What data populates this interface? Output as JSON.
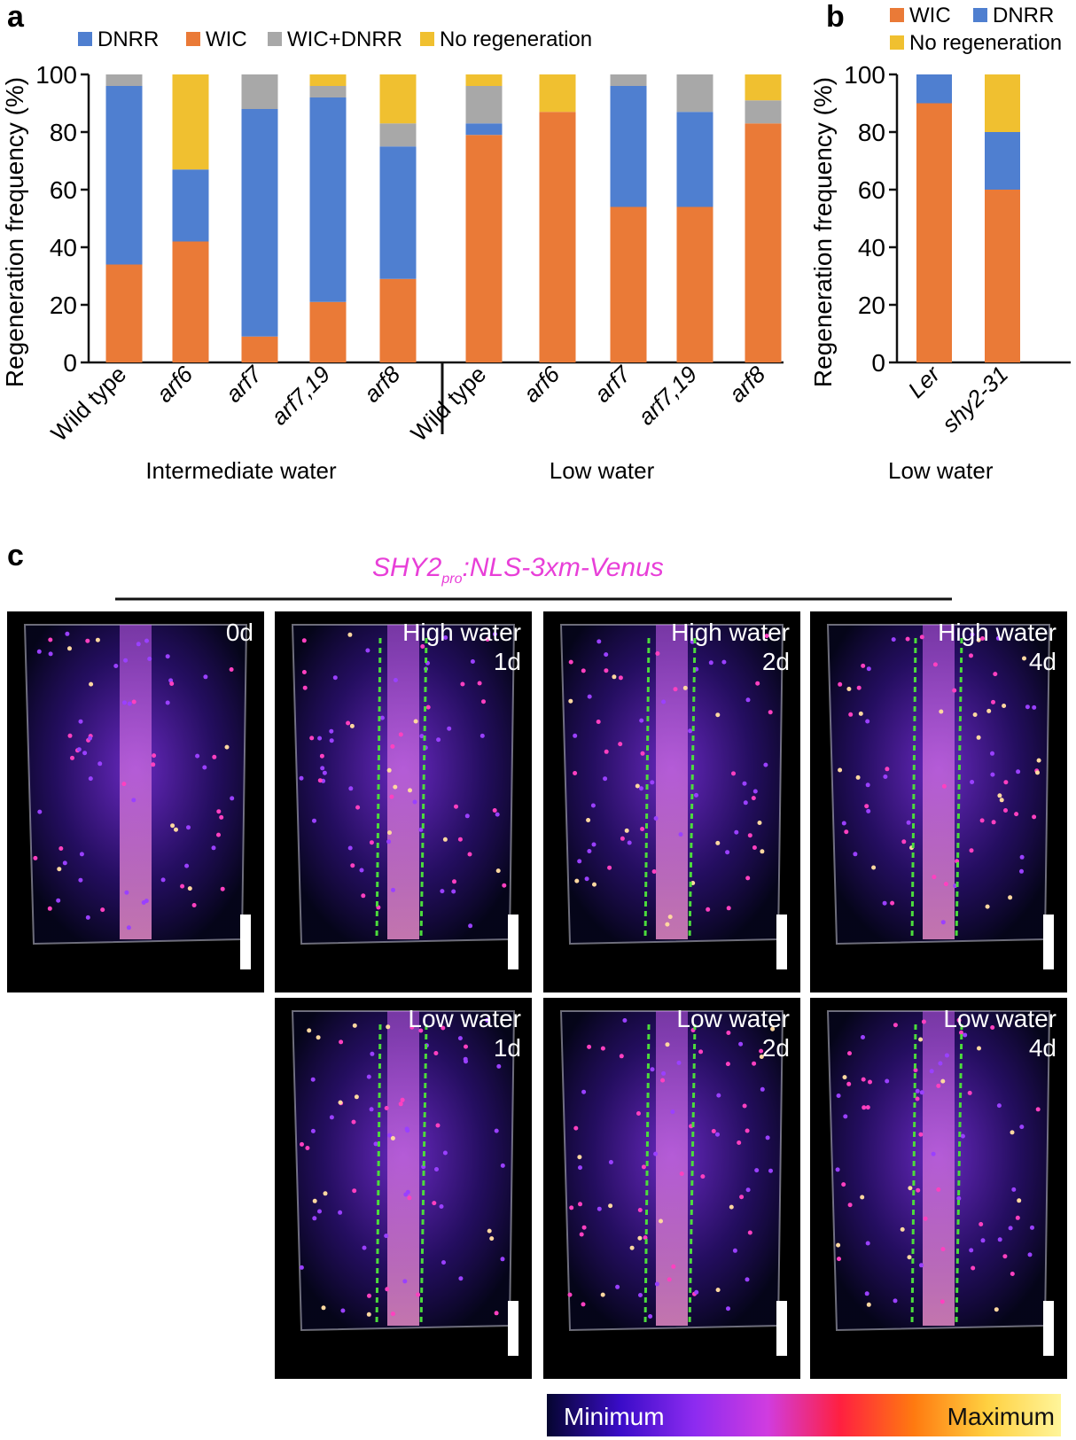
{
  "panels": {
    "a": {
      "letter": "a"
    },
    "b": {
      "letter": "b"
    },
    "c": {
      "letter": "c"
    }
  },
  "colors": {
    "DNRR": "#4f7fd0",
    "WIC": "#ea7a37",
    "WIC+DNRR": "#a8a8a8",
    "No regeneration": "#f0c030"
  },
  "chart_data": [
    {
      "type": "bar",
      "stacked": true,
      "ylabel": "Regeneration frequency (%)",
      "ylim": [
        0,
        100
      ],
      "yticks": [
        0,
        20,
        40,
        60,
        80,
        100
      ],
      "legend": [
        "DNRR",
        "WIC",
        "WIC+DNRR",
        "No regeneration"
      ],
      "legend_position": "top",
      "groups": [
        {
          "label": "Intermediate water",
          "categories": [
            "Wild type",
            "arf6",
            "arf7",
            "arf7,19",
            "arf8"
          ]
        },
        {
          "label": "Low water",
          "categories": [
            "Wild type",
            "arf6",
            "arf7",
            "arf7,19",
            "arf8"
          ]
        }
      ],
      "categories": [
        "Wild type",
        "arf6",
        "arf7",
        "arf7,19",
        "arf8",
        "Wild type",
        "arf6",
        "arf7",
        "arf7,19",
        "arf8"
      ],
      "italic_categories": [
        false,
        true,
        true,
        true,
        true,
        false,
        true,
        true,
        true,
        true
      ],
      "series": [
        {
          "name": "WIC",
          "values": [
            34,
            42,
            9,
            21,
            29,
            79,
            87,
            54,
            54,
            83
          ]
        },
        {
          "name": "DNRR",
          "values": [
            62,
            25,
            79,
            71,
            46,
            4,
            0,
            42,
            33,
            0
          ]
        },
        {
          "name": "WIC+DNRR",
          "values": [
            4,
            0,
            12,
            4,
            8,
            13,
            0,
            4,
            13,
            8
          ]
        },
        {
          "name": "No regeneration",
          "values": [
            0,
            33,
            0,
            4,
            17,
            4,
            13,
            0,
            0,
            9
          ]
        }
      ]
    },
    {
      "type": "bar",
      "stacked": true,
      "ylabel": "Regeneration frequency (%)",
      "xlabel": "Low water",
      "ylim": [
        0,
        100
      ],
      "yticks": [
        0,
        20,
        40,
        60,
        80,
        100
      ],
      "legend": [
        "WIC",
        "DNRR",
        "No regeneration"
      ],
      "legend_position": "top",
      "categories": [
        "Ler",
        "shy2-31"
      ],
      "series": [
        {
          "name": "WIC",
          "values": [
            90,
            60
          ]
        },
        {
          "name": "DNRR",
          "values": [
            10,
            20
          ]
        },
        {
          "name": "No regeneration",
          "values": [
            0,
            20
          ]
        }
      ]
    }
  ],
  "panel_c": {
    "title_main": "SHY2",
    "title_sub": "pro",
    "title_rest": ":NLS-3xm-Venus",
    "images": [
      {
        "condition": "",
        "day": "0d",
        "row": 0,
        "col": 0,
        "image": "fluorescence-micrograph"
      },
      {
        "condition": "High water",
        "day": "1d",
        "row": 0,
        "col": 1,
        "image": "fluorescence-micrograph"
      },
      {
        "condition": "High water",
        "day": "2d",
        "row": 0,
        "col": 2,
        "image": "fluorescence-micrograph"
      },
      {
        "condition": "High water",
        "day": "4d",
        "row": 0,
        "col": 3,
        "image": "fluorescence-micrograph"
      },
      {
        "condition": "Low water",
        "day": "1d",
        "row": 1,
        "col": 1,
        "image": "fluorescence-micrograph"
      },
      {
        "condition": "Low water",
        "day": "2d",
        "row": 1,
        "col": 2,
        "image": "fluorescence-micrograph"
      },
      {
        "condition": "Low water",
        "day": "4d",
        "row": 1,
        "col": 3,
        "image": "fluorescence-micrograph"
      }
    ],
    "colorbar": {
      "min_label": "Minimum",
      "max_label": "Maximum",
      "colormap": [
        "#050530",
        "#3a0cc8",
        "#8c2bf0",
        "#d03ce0",
        "#ff2040",
        "#ff7a10",
        "#ffd040",
        "#fff59a"
      ]
    }
  }
}
